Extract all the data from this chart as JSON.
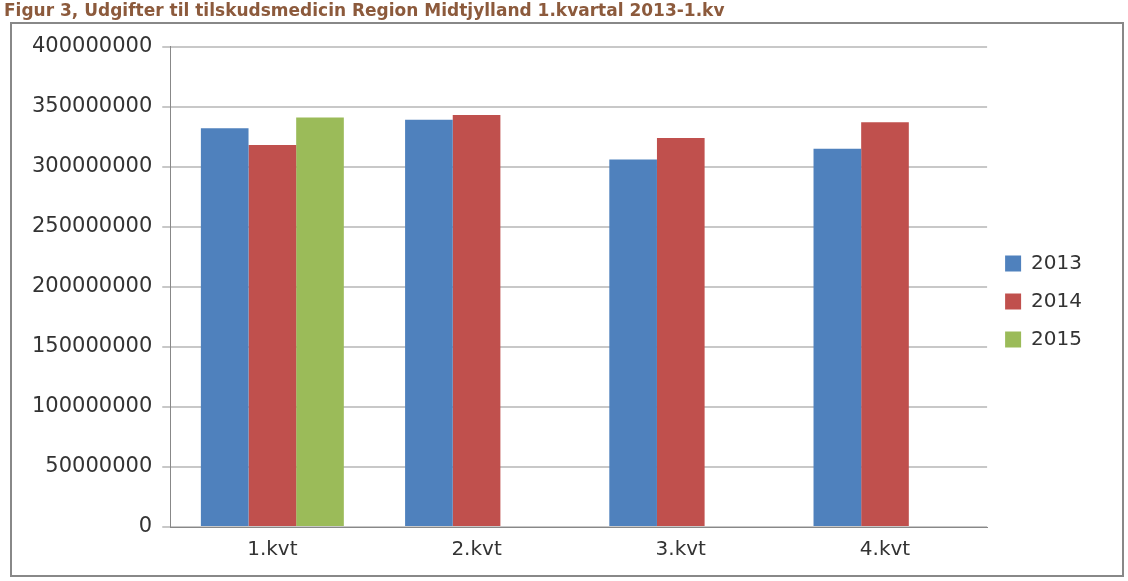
{
  "chart_data": {
    "type": "bar",
    "title": "Figur 3, Udgifter til tilskudsmedicin Region Midtjylland 1.kvartal 2013-1.kv",
    "categories": [
      "1.kvt",
      "2.kvt",
      "3.kvt",
      "4.kvt"
    ],
    "series": [
      {
        "name": "2013",
        "color": "#4f81bd",
        "values": [
          332000000,
          339000000,
          306000000,
          315000000
        ]
      },
      {
        "name": "2014",
        "color": "#c0504d",
        "values": [
          318000000,
          343000000,
          324000000,
          337000000
        ]
      },
      {
        "name": "2015",
        "color": "#9bbb59",
        "values": [
          341000000,
          null,
          null,
          null
        ]
      }
    ],
    "ylim": [
      0,
      400000000
    ],
    "yticks": [
      0,
      50000000,
      100000000,
      150000000,
      200000000,
      250000000,
      300000000,
      350000000,
      400000000
    ],
    "grid": "y",
    "legend": "right"
  }
}
